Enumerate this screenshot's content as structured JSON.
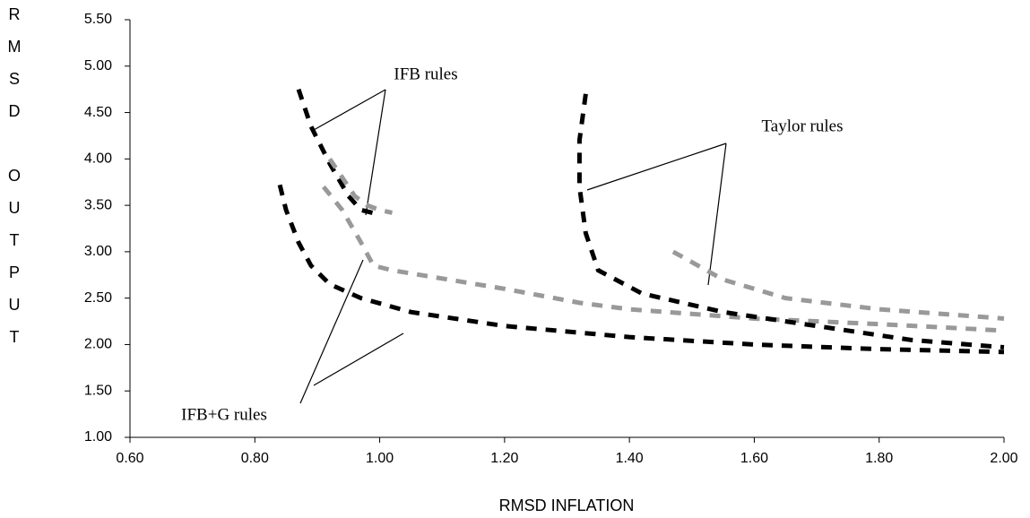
{
  "chart_data": {
    "type": "line",
    "x_label": "RMSD INFLATION",
    "y_label": "RMSD OUTPUT",
    "annotations": [
      "IFB rules",
      "Taylor rules",
      "IFB+G rules"
    ],
    "xlim": [
      0.6,
      2.0
    ],
    "ylim": [
      1.0,
      5.5
    ],
    "xticks": [
      {
        "value": 0.6,
        "label": "0.60"
      },
      {
        "value": 0.8,
        "label": "0.80"
      },
      {
        "value": 1.0,
        "label": "1.00"
      },
      {
        "value": 1.2,
        "label": "1.20"
      },
      {
        "value": 1.4,
        "label": "1.40"
      },
      {
        "value": 1.6,
        "label": "1.60"
      },
      {
        "value": 1.8,
        "label": "1.80"
      },
      {
        "value": 2.0,
        "label": "2.00"
      }
    ],
    "yticks": [
      {
        "value": 1.0,
        "label": "1.00"
      },
      {
        "value": 1.5,
        "label": "1.50"
      },
      {
        "value": 2.0,
        "label": "2.00"
      },
      {
        "value": 2.5,
        "label": "2.50"
      },
      {
        "value": 3.0,
        "label": "3.00"
      },
      {
        "value": 3.5,
        "label": "3.50"
      },
      {
        "value": 4.0,
        "label": "4.00"
      },
      {
        "value": 4.5,
        "label": "4.50"
      },
      {
        "value": 5.0,
        "label": "5.00"
      },
      {
        "value": 5.5,
        "label": "5.50"
      }
    ],
    "series": [
      {
        "color": "#000000",
        "x": [
          0.87,
          0.89,
          0.92,
          0.95,
          0.97,
          1.0
        ],
        "values": [
          4.75,
          4.35,
          3.95,
          3.6,
          3.45,
          3.4
        ]
      },
      {
        "color": "#999999",
        "x": [
          0.92,
          0.94,
          0.96,
          0.98,
          1.0,
          1.02
        ],
        "values": [
          4.0,
          3.8,
          3.6,
          3.5,
          3.45,
          3.42
        ]
      },
      {
        "color": "#000000",
        "x": [
          0.84,
          0.85,
          0.87,
          0.89,
          0.92,
          0.97,
          1.05,
          1.2,
          1.4,
          1.6,
          1.8,
          2.0
        ],
        "values": [
          3.72,
          3.45,
          3.1,
          2.85,
          2.65,
          2.5,
          2.35,
          2.2,
          2.08,
          2.0,
          1.95,
          1.92
        ]
      },
      {
        "color": "#999999",
        "x": [
          0.91,
          0.94,
          0.97,
          0.99,
          1.02,
          1.2,
          1.32,
          1.4,
          1.6,
          1.8,
          2.0
        ],
        "values": [
          3.7,
          3.45,
          3.1,
          2.85,
          2.8,
          2.6,
          2.45,
          2.38,
          2.28,
          2.22,
          2.15
        ]
      },
      {
        "color": "#000000",
        "x": [
          1.33,
          1.32,
          1.32,
          1.33,
          1.35,
          1.42,
          1.55,
          1.7,
          1.85,
          2.0
        ],
        "values": [
          4.7,
          4.2,
          3.7,
          3.2,
          2.8,
          2.55,
          2.35,
          2.2,
          2.05,
          1.97
        ]
      },
      {
        "color": "#999999",
        "x": [
          1.47,
          1.55,
          1.65,
          1.8,
          2.0
        ],
        "values": [
          3.0,
          2.7,
          2.5,
          2.38,
          2.28
        ]
      }
    ]
  }
}
